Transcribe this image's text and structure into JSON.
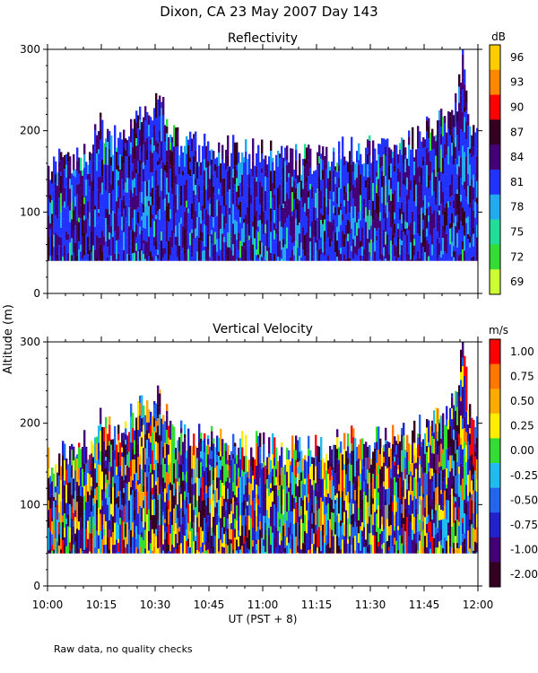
{
  "figure": {
    "title": "Dixon, CA 23 May 2007  Day 143",
    "shared_ylabel": "Altitude (m)",
    "shared_xlabel": "UT  (PST + 8)",
    "footnote": "Raw data, no quality checks",
    "x_ticks": [
      "10:00",
      "10:15",
      "10:30",
      "10:45",
      "11:00",
      "11:15",
      "11:30",
      "11:45",
      "12:00"
    ]
  },
  "chart_data": [
    {
      "type": "heatmap",
      "title": "Reflectivity",
      "xlim": [
        "10:00",
        "12:00"
      ],
      "ylim": [
        0,
        300
      ],
      "y_ticks": [
        0,
        100,
        200,
        300
      ],
      "colorbar": {
        "label": "dB",
        "ticks": [
          "96",
          "93",
          "90",
          "87",
          "84",
          "81",
          "78",
          "75",
          "72",
          "69"
        ],
        "colors": [
          "#ffcc00",
          "#ff8800",
          "#ff0000",
          "#330022",
          "#440077",
          "#2233ff",
          "#22aaee",
          "#22dd99",
          "#33dd33",
          "#ccff33"
        ]
      },
      "data_bottom_m": 40,
      "top_profile": {
        "time_h": [
          10.0,
          10.1,
          10.2,
          10.25,
          10.3,
          10.4,
          10.5,
          10.55,
          10.6,
          10.7,
          10.8,
          10.9,
          11.0,
          11.1,
          11.2,
          11.3,
          11.4,
          11.5,
          11.6,
          11.7,
          11.75,
          11.8,
          11.85,
          11.9,
          11.93,
          11.96,
          12.0
        ],
        "top_m": [
          150,
          165,
          175,
          210,
          185,
          210,
          230,
          220,
          185,
          180,
          175,
          175,
          170,
          165,
          165,
          170,
          180,
          175,
          180,
          185,
          200,
          205,
          210,
          230,
          300,
          210,
          190
        ]
      },
      "dominant_values_dB": [
        81,
        84,
        87,
        78
      ]
    },
    {
      "type": "heatmap",
      "title": "Vertical Velocity",
      "xlim": [
        "10:00",
        "12:00"
      ],
      "ylim": [
        0,
        300
      ],
      "y_ticks": [
        0,
        100,
        200,
        300
      ],
      "colorbar": {
        "label": "m/s",
        "ticks": [
          "1.00",
          "0.75",
          "0.50",
          "0.25",
          "0.00",
          "-0.25",
          "-0.50",
          "-0.75",
          "-1.00",
          "-2.00"
        ],
        "colors": [
          "#ff0000",
          "#ff7700",
          "#ffaa00",
          "#ffee00",
          "#33dd33",
          "#22bbee",
          "#2266ee",
          "#2222cc",
          "#440077",
          "#330022"
        ]
      },
      "data_bottom_m": 40,
      "top_profile": {
        "time_h": [
          10.0,
          10.1,
          10.2,
          10.25,
          10.3,
          10.4,
          10.5,
          10.55,
          10.6,
          10.7,
          10.8,
          10.9,
          11.0,
          11.1,
          11.2,
          11.3,
          11.4,
          11.5,
          11.6,
          11.7,
          11.75,
          11.8,
          11.85,
          11.9,
          11.93,
          11.96,
          12.0
        ],
        "top_m": [
          150,
          165,
          175,
          210,
          185,
          210,
          230,
          220,
          185,
          180,
          175,
          175,
          170,
          165,
          165,
          170,
          180,
          175,
          180,
          185,
          200,
          205,
          210,
          230,
          300,
          210,
          190
        ]
      },
      "dominant_values_ms": [
        -1.0,
        -0.75,
        -0.5,
        0.0,
        0.5
      ]
    }
  ]
}
